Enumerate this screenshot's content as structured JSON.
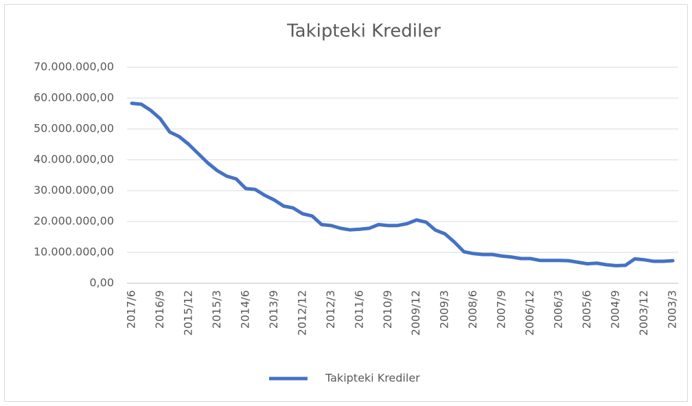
{
  "chart_data": {
    "type": "line",
    "title": "Takipteki Krediler",
    "categories": [
      "2017/6",
      null,
      null,
      "2016/9",
      null,
      null,
      "2015/12",
      null,
      null,
      "2015/3",
      null,
      null,
      "2014/6",
      null,
      null,
      "2013/9",
      null,
      null,
      "2012/12",
      null,
      null,
      "2012/3",
      null,
      null,
      "2011/6",
      null,
      null,
      "2010/9",
      null,
      null,
      "2009/12",
      null,
      null,
      "2009/3",
      null,
      null,
      "2008/6",
      null,
      null,
      "2007/9",
      null,
      null,
      "2006/12",
      null,
      null,
      "2006/3",
      null,
      null,
      "2005/6",
      null,
      null,
      "2004/9",
      null,
      null,
      "2003/12",
      null,
      null,
      "2003/3"
    ],
    "series": [
      {
        "name": "Takipteki Krediler",
        "color": "#4472c4",
        "values": [
          58300000,
          58000000,
          56000000,
          53300000,
          49000000,
          47500000,
          45000000,
          42000000,
          39000000,
          36500000,
          34700000,
          33800000,
          30700000,
          30400000,
          28500000,
          27000000,
          25000000,
          24400000,
          22500000,
          21800000,
          19000000,
          18700000,
          17800000,
          17300000,
          17500000,
          17800000,
          19000000,
          18700000,
          18700000,
          19300000,
          20500000,
          19800000,
          17200000,
          16000000,
          13300000,
          10200000,
          9600000,
          9300000,
          9300000,
          8800000,
          8500000,
          8000000,
          8000000,
          7400000,
          7400000,
          7400000,
          7300000,
          6800000,
          6300000,
          6500000,
          6000000,
          5700000,
          5800000,
          7900000,
          7600000,
          7100000,
          7100000,
          7300000
        ]
      }
    ],
    "ylim": [
      0,
      70000000
    ],
    "yticks": [
      {
        "value": 0,
        "label": "0,00"
      },
      {
        "value": 10000000,
        "label": "10.000.000,00"
      },
      {
        "value": 20000000,
        "label": "20.000.000,00"
      },
      {
        "value": 30000000,
        "label": "30.000.000,00"
      },
      {
        "value": 40000000,
        "label": "40.000.000,00"
      },
      {
        "value": 50000000,
        "label": "50.000.000,00"
      },
      {
        "value": 60000000,
        "label": "60.000.000,00"
      },
      {
        "value": 70000000,
        "label": "70.000.000,00"
      }
    ],
    "grid": true,
    "legend": "bottom"
  }
}
